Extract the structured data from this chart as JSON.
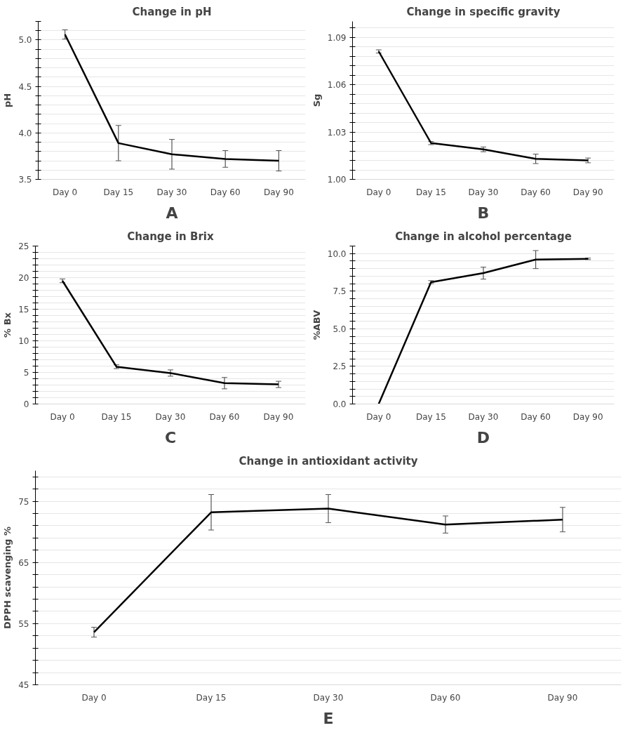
{
  "chart_data": [
    {
      "type": "line",
      "title": "Change in pH",
      "ylabel": "pH",
      "categories": [
        "Day 0",
        "Day 15",
        "Day 30",
        "Day 60",
        "Day 90"
      ],
      "series": [
        {
          "color": "#000000",
          "values": [
            5.06,
            3.89,
            3.77,
            3.72,
            3.7
          ],
          "errors": [
            0.05,
            0.19,
            0.16,
            0.09,
            0.11
          ]
        }
      ],
      "ylim": [
        3.5,
        5.2
      ],
      "yticks": [
        {
          "value": 3.5,
          "label": "3.5"
        },
        {
          "value": 3.6,
          "label": null
        },
        {
          "value": 3.7,
          "label": null
        },
        {
          "value": 3.8,
          "label": null
        },
        {
          "value": 3.9,
          "label": null
        },
        {
          "value": 4,
          "label": "4.0"
        },
        {
          "value": 4.1,
          "label": null
        },
        {
          "value": 4.2,
          "label": null
        },
        {
          "value": 4.3,
          "label": null
        },
        {
          "value": 4.4,
          "label": null
        },
        {
          "value": 4.5,
          "label": "4.5"
        },
        {
          "value": 4.6,
          "label": null
        },
        {
          "value": 4.7,
          "label": null
        },
        {
          "value": 4.8,
          "label": null
        },
        {
          "value": 4.9,
          "label": null
        },
        {
          "value": 5,
          "label": "5.0"
        },
        {
          "value": 5.1,
          "label": null
        },
        {
          "value": 5.2,
          "label": null
        }
      ],
      "grid": "y",
      "marker": "none",
      "line_style": "solid",
      "annotations": [
        "A"
      ]
    },
    {
      "type": "line",
      "title": "Change in specific gravity",
      "ylabel": "Sg",
      "categories": [
        "Day 0",
        "Day 15",
        "Day 30",
        "Day 60",
        "Day 90"
      ],
      "series": [
        {
          "color": "#000000",
          "values": [
            1.081,
            1.023,
            1.019,
            1.013,
            1.012
          ],
          "errors": [
            0.001,
            0.001,
            0.0015,
            0.003,
            0.0015
          ]
        }
      ],
      "ylim": [
        1.0,
        1.1
      ],
      "yticks": [
        {
          "value": 1.0,
          "label": "1.00"
        },
        {
          "value": 1.006,
          "label": null
        },
        {
          "value": 1.012,
          "label": null
        },
        {
          "value": 1.018,
          "label": null
        },
        {
          "value": 1.024,
          "label": null
        },
        {
          "value": 1.03,
          "label": "1.03"
        },
        {
          "value": 1.036,
          "label": null
        },
        {
          "value": 1.042,
          "label": null
        },
        {
          "value": 1.048,
          "label": null
        },
        {
          "value": 1.054,
          "label": null
        },
        {
          "value": 1.06,
          "label": "1.06"
        },
        {
          "value": 1.066,
          "label": null
        },
        {
          "value": 1.072,
          "label": null
        },
        {
          "value": 1.078,
          "label": null
        },
        {
          "value": 1.084,
          "label": null
        },
        {
          "value": 1.09,
          "label": "1.09"
        },
        {
          "value": 1.096,
          "label": null
        }
      ],
      "grid": "y",
      "marker": "none",
      "line_style": "solid",
      "annotations": [
        "B"
      ]
    },
    {
      "type": "line",
      "title": "Change in Brix",
      "ylabel": "% Bx",
      "categories": [
        "Day 0",
        "Day 15",
        "Day 30",
        "Day 60",
        "Day 90"
      ],
      "series": [
        {
          "color": "#000000",
          "values": [
            19.5,
            5.9,
            4.9,
            3.3,
            3.1
          ],
          "errors": [
            0.3,
            0.3,
            0.5,
            0.9,
            0.5
          ]
        }
      ],
      "ylim": [
        0,
        25
      ],
      "yticks": [
        0,
        {
          "value": 1,
          "label": null
        },
        {
          "value": 2,
          "label": null
        },
        {
          "value": 3,
          "label": null
        },
        {
          "value": 4,
          "label": null
        },
        5,
        {
          "value": 6,
          "label": null
        },
        {
          "value": 7,
          "label": null
        },
        {
          "value": 8,
          "label": null
        },
        {
          "value": 9,
          "label": null
        },
        10,
        {
          "value": 11,
          "label": null
        },
        {
          "value": 12,
          "label": null
        },
        {
          "value": 13,
          "label": null
        },
        {
          "value": 14,
          "label": null
        },
        15,
        {
          "value": 16,
          "label": null
        },
        {
          "value": 17,
          "label": null
        },
        {
          "value": 18,
          "label": null
        },
        {
          "value": 19,
          "label": null
        },
        20,
        {
          "value": 21,
          "label": null
        },
        {
          "value": 22,
          "label": null
        },
        {
          "value": 23,
          "label": null
        },
        {
          "value": 24,
          "label": null
        },
        25
      ],
      "grid": "y",
      "marker": "none",
      "line_style": "solid",
      "annotations": [
        "C"
      ]
    },
    {
      "type": "line",
      "title": "Change in alcohol percentage",
      "ylabel": "%ABV",
      "categories": [
        "Day 0",
        "Day 15",
        "Day 30",
        "Day 60",
        "Day 90"
      ],
      "series": [
        {
          "color": "#000000",
          "values": [
            0,
            8.1,
            8.7,
            9.6,
            9.65
          ],
          "errors": [
            null,
            0.1,
            0.4,
            0.6,
            0.05
          ]
        }
      ],
      "ylim": [
        0,
        10.5
      ],
      "yticks": [
        {
          "value": 0,
          "label": "0.0"
        },
        {
          "value": 0.5,
          "label": null
        },
        {
          "value": 1,
          "label": null
        },
        {
          "value": 1.5,
          "label": null
        },
        {
          "value": 2,
          "label": null
        },
        {
          "value": 2.5,
          "label": "2.5"
        },
        {
          "value": 3,
          "label": null
        },
        {
          "value": 3.5,
          "label": null
        },
        {
          "value": 4,
          "label": null
        },
        {
          "value": 4.5,
          "label": null
        },
        {
          "value": 5,
          "label": "5.0"
        },
        {
          "value": 5.5,
          "label": null
        },
        {
          "value": 6,
          "label": null
        },
        {
          "value": 6.5,
          "label": null
        },
        {
          "value": 7,
          "label": null
        },
        {
          "value": 7.5,
          "label": "7.5"
        },
        {
          "value": 8,
          "label": null
        },
        {
          "value": 8.5,
          "label": null
        },
        {
          "value": 9,
          "label": null
        },
        {
          "value": 9.5,
          "label": null
        },
        {
          "value": 10,
          "label": "10.0"
        },
        {
          "value": 10.5,
          "label": null
        }
      ],
      "grid": "y",
      "marker": "none",
      "line_style": "solid",
      "annotations": [
        "D"
      ]
    },
    {
      "type": "line",
      "title": "Change in antioxidant activity",
      "ylabel": "DPPH scavenging %",
      "categories": [
        "Day 0",
        "Day 15",
        "Day 30",
        "Day 60",
        "Day 90"
      ],
      "series": [
        {
          "color": "#000000",
          "values": [
            53.6,
            73.2,
            73.8,
            71.2,
            72.0
          ],
          "errors": [
            0.8,
            2.9,
            2.3,
            1.4,
            2.0
          ]
        }
      ],
      "ylim": [
        45,
        80
      ],
      "yticks": [
        45,
        {
          "value": 47,
          "label": null
        },
        {
          "value": 49,
          "label": null
        },
        {
          "value": 51,
          "label": null
        },
        {
          "value": 53,
          "label": null
        },
        55,
        {
          "value": 57,
          "label": null
        },
        {
          "value": 59,
          "label": null
        },
        {
          "value": 61,
          "label": null
        },
        {
          "value": 63,
          "label": null
        },
        65,
        {
          "value": 67,
          "label": null
        },
        {
          "value": 69,
          "label": null
        },
        {
          "value": 71,
          "label": null
        },
        {
          "value": 73,
          "label": null
        },
        75,
        {
          "value": 77,
          "label": null
        },
        {
          "value": 79,
          "label": null
        }
      ],
      "grid": "y",
      "marker": "none",
      "line_style": "solid",
      "annotations": [
        "E"
      ]
    }
  ]
}
